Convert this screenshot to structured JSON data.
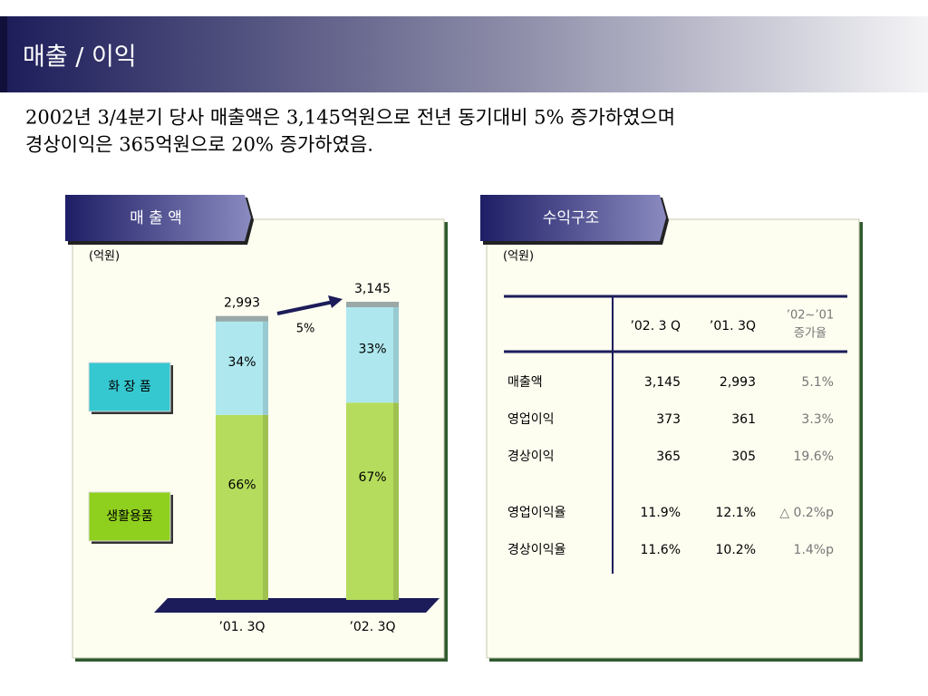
{
  "header": {
    "title": "매출 / 이익"
  },
  "summary": [
    "2002년 3/4분기 당사 매출액은 3,145억원으로 전년 동기대비 5% 증가하였으며",
    "경상이익은 365억원으로 20% 증가하였음."
  ],
  "sales": {
    "tab": "매 출 액",
    "unit": "(억원)",
    "categories": [
      "’01. 3Q",
      "’02. 3Q"
    ],
    "totals": [
      2993,
      3145
    ],
    "total_labels": [
      "2,993",
      "3,145"
    ],
    "growth_label": "5%",
    "series": [
      {
        "name": "생활용품",
        "color": "#b5dc5c",
        "values": [
          66,
          67
        ],
        "value_labels": [
          "66%",
          "67%"
        ]
      },
      {
        "name": "화 장 품",
        "color": "#aee8ee",
        "values": [
          34,
          33
        ],
        "value_labels": [
          "34%",
          "33%"
        ]
      }
    ]
  },
  "profit": {
    "tab": "수익구조",
    "unit": "(억원)",
    "columns": [
      "’02. 3 Q",
      "’01. 3Q",
      [
        "’02~’01",
        "증가율"
      ]
    ],
    "rows": [
      [
        "매출액",
        "3,145",
        "2,993",
        "5.1%"
      ],
      [
        "영업이익",
        "373",
        "361",
        "3.3%"
      ],
      [
        "경상이익",
        "365",
        "305",
        "19.6%"
      ],
      [
        "영업이익율",
        "11.9%",
        "12.1%",
        "△ 0.2%p"
      ],
      [
        "경상이익율",
        "11.6%",
        "10.2%",
        "1.4%p"
      ]
    ]
  }
}
